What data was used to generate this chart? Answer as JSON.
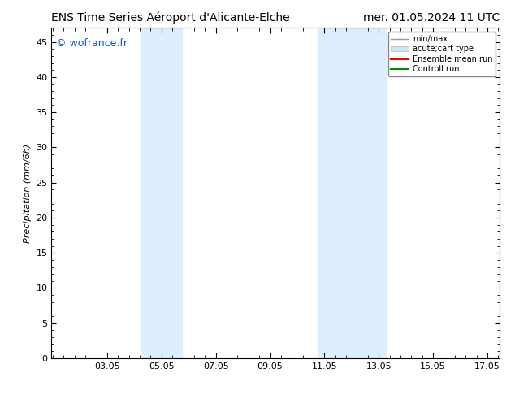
{
  "title_left": "ENS Time Series Aéroport d'Alicante-Elche",
  "title_right": "mer. 01.05.2024 11 UTC",
  "ylabel": "Precipitation (mm/6h)",
  "watermark": "© wofrance.fr",
  "watermark_color": "#1155cc",
  "background_color": "#ffffff",
  "plot_bg_color": "#ffffff",
  "xlim": [
    1.0,
    17.5
  ],
  "ylim": [
    0,
    47
  ],
  "yticks": [
    0,
    5,
    10,
    15,
    20,
    25,
    30,
    35,
    40,
    45
  ],
  "xticks": [
    3.05,
    5.05,
    7.05,
    9.05,
    11.05,
    13.05,
    15.05,
    17.05
  ],
  "xtick_labels": [
    "03.05",
    "05.05",
    "07.05",
    "09.05",
    "11.05",
    "13.05",
    "15.05",
    "17.05"
  ],
  "shaded_regions": [
    {
      "xmin": 4.3,
      "xmax": 5.8,
      "color": "#ddeeff"
    },
    {
      "xmin": 10.8,
      "xmax": 13.3,
      "color": "#ddeeff"
    }
  ],
  "legend_entries": [
    {
      "label": "min/max",
      "color": "#aaaaaa",
      "lw": 1.5,
      "style": "minmax"
    },
    {
      "label": "acute;cart type",
      "color": "#cce4f6",
      "lw": 8,
      "style": "bar"
    },
    {
      "label": "Ensemble mean run",
      "color": "#ff0000",
      "lw": 1.5,
      "style": "line"
    },
    {
      "label": "Controll run",
      "color": "#008800",
      "lw": 1.5,
      "style": "line"
    }
  ],
  "title_fontsize": 10,
  "axis_fontsize": 8,
  "tick_fontsize": 8,
  "watermark_fontsize": 9,
  "legend_fontsize": 7
}
